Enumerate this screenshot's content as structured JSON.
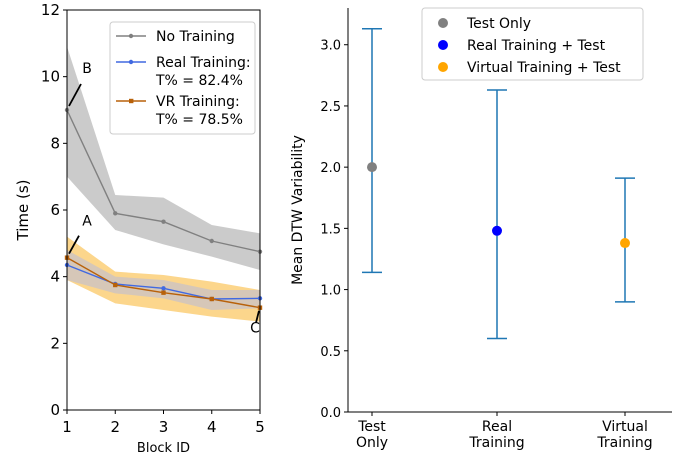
{
  "chart_data": [
    {
      "type": "line",
      "xlabel": "Block ID",
      "ylabel": "Time (s)",
      "xlim": [
        1,
        5
      ],
      "ylim": [
        0,
        12
      ],
      "x_ticks": [
        "1",
        "2",
        "3",
        "4",
        "5"
      ],
      "y_ticks": [
        "0",
        "2",
        "4",
        "6",
        "8",
        "10",
        "12"
      ],
      "x": [
        1,
        2,
        3,
        4,
        5
      ],
      "legend_position": "top-right",
      "series": [
        {
          "name": "No Training",
          "color": "#808080",
          "band_color": "#bfbfbf",
          "marker": "circle",
          "values": [
            9.0,
            5.9,
            5.65,
            5.07,
            4.75
          ],
          "band_lower": [
            7.0,
            5.4,
            4.97,
            4.6,
            4.2
          ],
          "band_upper": [
            10.9,
            6.45,
            6.37,
            5.55,
            5.3
          ]
        },
        {
          "name": "Real Training:",
          "name_line2": "T% = 82.4%",
          "color": "#4169e1",
          "marker": "circle",
          "values": [
            4.35,
            3.78,
            3.65,
            3.33,
            3.35
          ],
          "band_lower": [
            3.9,
            3.5,
            3.35,
            3.0,
            3.05
          ],
          "band_upper": [
            4.8,
            4.0,
            3.9,
            3.6,
            3.6
          ]
        },
        {
          "name": "VR Training:",
          "name_line2": "T% = 78.5%",
          "color": "#b8610a",
          "band_color": "#f7c873",
          "marker": "square",
          "values": [
            4.57,
            3.75,
            3.52,
            3.33,
            3.07
          ],
          "band_lower": [
            3.9,
            3.2,
            3.0,
            2.8,
            2.65
          ],
          "band_upper": [
            5.2,
            4.15,
            4.05,
            3.85,
            3.6
          ]
        }
      ],
      "annotations": [
        {
          "text": "B",
          "x": 1,
          "y": 9.0
        },
        {
          "text": "A",
          "x": 1,
          "y": 4.57
        },
        {
          "text": "C",
          "x": 5,
          "y": 3.07
        }
      ]
    },
    {
      "type": "scatter",
      "ylabel": "Mean DTW Variability",
      "ylim": [
        0,
        3.3
      ],
      "y_ticks": [
        "0.0",
        "0.5",
        "1.0",
        "1.5",
        "2.0",
        "2.5",
        "3.0"
      ],
      "categories": [
        "Test\nOnly",
        "Real\nTraining",
        "Virtual\nTraining"
      ],
      "legend_position": "top-right",
      "error_color": "#1f77b4",
      "series": [
        {
          "name": "Test Only",
          "color": "#808080",
          "value": 2.0,
          "err_low": 1.14,
          "err_high": 3.13
        },
        {
          "name": "Real Training + Test",
          "color": "#0000ff",
          "value": 1.48,
          "err_low": 0.6,
          "err_high": 2.63
        },
        {
          "name": "Virtual Training + Test",
          "color": "#ffa500",
          "value": 1.38,
          "err_low": 0.9,
          "err_high": 1.91
        }
      ]
    }
  ]
}
